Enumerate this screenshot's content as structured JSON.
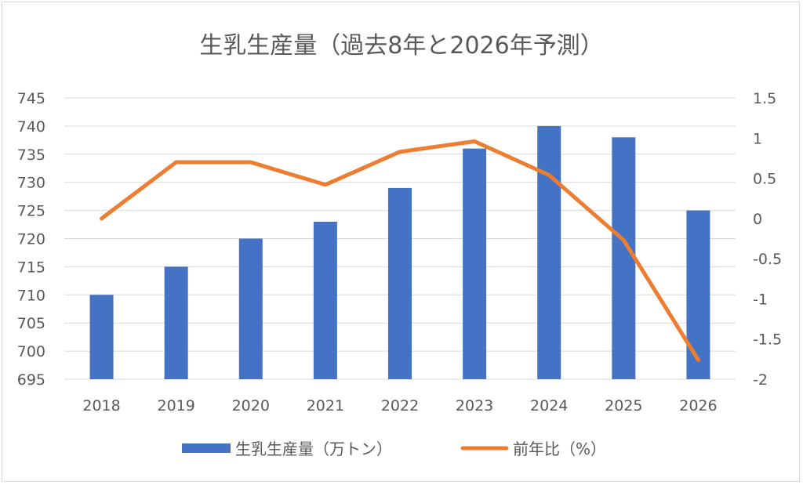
{
  "chart_data": {
    "type": "bar+line",
    "title": "生乳生産量（過去8年と2026年予測）",
    "categories": [
      "2018",
      "2019",
      "2020",
      "2021",
      "2022",
      "2023",
      "2024",
      "2025",
      "2026"
    ],
    "series": [
      {
        "name": "生乳生産量（万トン）",
        "type": "bar",
        "axis": "left",
        "color": "#4472c4",
        "values": [
          710,
          715,
          720,
          723,
          729,
          736,
          740,
          738,
          725
        ]
      },
      {
        "name": "前年比（%）",
        "type": "line",
        "axis": "right",
        "color": "#ed7d31",
        "values": [
          0,
          0.7,
          0.7,
          0.42,
          0.83,
          0.96,
          0.54,
          -0.27,
          -1.76
        ]
      }
    ],
    "y_left": {
      "range": [
        695,
        745
      ],
      "ticks": [
        "695",
        "700",
        "705",
        "710",
        "715",
        "720",
        "725",
        "730",
        "735",
        "740",
        "745"
      ]
    },
    "y_right": {
      "range": [
        -2,
        1.5
      ],
      "ticks": [
        "-2",
        "-1.5",
        "-1",
        "-0.5",
        "0",
        "0.5",
        "1",
        "1.5"
      ]
    },
    "grid": true,
    "legend": "bottom"
  }
}
